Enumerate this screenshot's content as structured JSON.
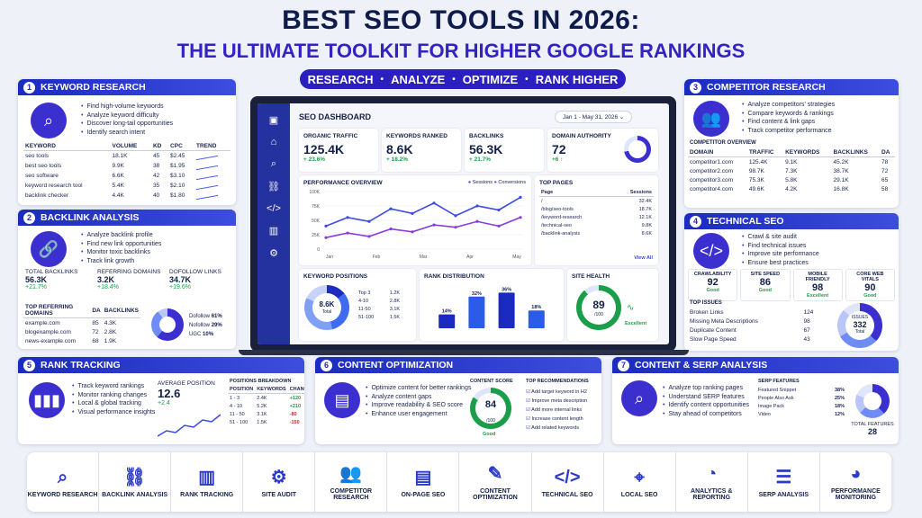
{
  "header": {
    "title": "BEST SEO TOOLS IN 2026:",
    "subtitle": "THE ULTIMATE TOOLKIT FOR HIGHER GOOGLE RANKINGS",
    "steps": [
      "RESEARCH",
      "ANALYZE",
      "OPTIMIZE",
      "RANK HIGHER"
    ],
    "dot": "•"
  },
  "kw": {
    "num": "1",
    "title": "KEYWORD RESEARCH",
    "bullets": [
      "Find high-volume keywords",
      "Analyze keyword difficulty",
      "Discover long-tail opportunities",
      "Identify search intent"
    ],
    "cols": [
      "KEYWORD",
      "VOLUME",
      "KD",
      "CPC",
      "TREND"
    ],
    "rows": [
      [
        "seo tools",
        "18.1K",
        "45",
        "$2.45"
      ],
      [
        "best seo tools",
        "9.9K",
        "38",
        "$1.95"
      ],
      [
        "seo software",
        "6.6K",
        "42",
        "$3.10"
      ],
      [
        "keyword research tool",
        "5.4K",
        "35",
        "$2.10"
      ],
      [
        "backlink checker",
        "4.4K",
        "40",
        "$1.80"
      ]
    ]
  },
  "bl": {
    "num": "2",
    "title": "BACKLINK ANALYSIS",
    "bullets": [
      "Analyze backlink profile",
      "Find new link opportunities",
      "Monitor toxic backlinks",
      "Track link growth"
    ],
    "stats": [
      {
        "label": "TOTAL BACKLINKS",
        "value": "56.3K",
        "change": "+21.7%"
      },
      {
        "label": "REFERRING DOMAINS",
        "value": "3.2K",
        "change": "+18.4%"
      },
      {
        "label": "DOFOLLOW LINKS",
        "value": "34.7K",
        "change": "+19.6%"
      }
    ],
    "cols": [
      "TOP REFERRING DOMAINS",
      "DA",
      "BACKLINKS"
    ],
    "rows": [
      [
        "example.com",
        "85",
        "4.3K"
      ],
      [
        "blogexample.com",
        "72",
        "2.8K"
      ],
      [
        "news-example.com",
        "68",
        "1.9K"
      ]
    ],
    "legend": [
      [
        "Dofollow",
        "61%"
      ],
      [
        "Nofollow",
        "29%"
      ],
      [
        "UGC",
        "10%"
      ]
    ]
  },
  "ct": {
    "num": "3",
    "title": "COMPETITOR RESEARCH",
    "bullets": [
      "Analyze competitors' strategies",
      "Compare keywords & rankings",
      "Find content & link gaps",
      "Track competitor performance"
    ],
    "overview": "COMPETITOR OVERVIEW",
    "cols": [
      "DOMAIN",
      "TRAFFIC",
      "KEYWORDS",
      "BACKLINKS",
      "DA"
    ],
    "rows": [
      [
        "competitor1.com",
        "125.4K",
        "9.1K",
        "45.2K",
        "78"
      ],
      [
        "competitor2.com",
        "98.7K",
        "7.3K",
        "38.7K",
        "72"
      ],
      [
        "competitor3.com",
        "75.3K",
        "5.8K",
        "29.1K",
        "65"
      ],
      [
        "competitor4.com",
        "49.6K",
        "4.2K",
        "16.8K",
        "58"
      ]
    ]
  },
  "ts": {
    "num": "4",
    "title": "TECHNICAL SEO",
    "bullets": [
      "Crawl & site audit",
      "Find technical issues",
      "Improve site performance",
      "Ensure best practices"
    ],
    "scores": [
      [
        "CRAWLABILITY",
        "92",
        "Good"
      ],
      [
        "SITE SPEED",
        "86",
        "Good"
      ],
      [
        "MOBILE FRIENDLY",
        "98",
        "Excellent"
      ],
      [
        "CORE WEB VITALS",
        "90",
        "Good"
      ]
    ],
    "issues_title": "TOP ISSUES",
    "issues": [
      [
        "Broken Links",
        "124"
      ],
      [
        "Missing Meta Descriptions",
        "98"
      ],
      [
        "Duplicate Content",
        "67"
      ],
      [
        "Slow Page Speed",
        "43"
      ]
    ],
    "issues_label": "ISSUES",
    "issues_total": "332",
    "issues_sub": "Total"
  },
  "rt": {
    "num": "5",
    "title": "RANK TRACKING",
    "bullets": [
      "Track keyword rankings",
      "Monitor ranking changes",
      "Local & global tracking",
      "Visual performance insights"
    ],
    "avg_label": "AVERAGE POSITION",
    "avg": "12.6",
    "avg_change": "+2.4",
    "pb_title": "POSITIONS BREAKDOWN",
    "cols": [
      "POSITION",
      "KEYWORDS",
      "CHANGE"
    ],
    "rows": [
      [
        "1 - 3",
        "2.4K",
        "+120"
      ],
      [
        "4 - 10",
        "5.2K",
        "+210"
      ],
      [
        "11 - 50",
        "3.1K",
        "-80"
      ],
      [
        "51 - 100",
        "1.5K",
        "-150"
      ]
    ]
  },
  "co": {
    "num": "6",
    "title": "CONTENT OPTIMIZATION",
    "bullets": [
      "Optimize content for better rankings",
      "Analyze content gaps",
      "Improve readability & SEO score",
      "Enhance user engagement"
    ],
    "score_label": "CONTENT SCORE",
    "score": "84",
    "score_max": "/100",
    "score_status": "Good",
    "rec_title": "TOP RECOMMENDATIONS",
    "recs": [
      "Add target keyword in H2",
      "Improve meta description",
      "Add more internal links",
      "Increase content length",
      "Add related keywords"
    ]
  },
  "cs": {
    "num": "7",
    "title": "CONTENT & SERP ANALYSIS",
    "bullets": [
      "Analyze top ranking pages",
      "Understand SERP features",
      "Identify content opportunities",
      "Stay ahead of competitors"
    ],
    "sf_title": "SERP FEATURES",
    "features": [
      [
        "Featured Snippet",
        "38%"
      ],
      [
        "People Also Ask",
        "25%"
      ],
      [
        "Image Pack",
        "18%"
      ],
      [
        "Video",
        "12%"
      ]
    ],
    "total_label": "TOTAL FEATURES",
    "total": "28"
  },
  "dash": {
    "title": "SEO DASHBOARD",
    "date": "Jan 1 - May 31, 2026",
    "kpis": [
      {
        "label": "ORGANIC TRAFFIC",
        "value": "125.4K",
        "change": "+ 23.6%"
      },
      {
        "label": "KEYWORDS RANKED",
        "value": "8.6K",
        "change": "+ 18.2%"
      },
      {
        "label": "BACKLINKS",
        "value": "56.3K",
        "change": "+ 21.7%"
      },
      {
        "label": "DOMAIN AUTHORITY",
        "value": "72",
        "change": "+6 ↑"
      }
    ],
    "perf_title": "PERFORMANCE OVERVIEW",
    "legend": [
      "Sessions",
      "Conversions"
    ],
    "yticks": [
      "100K",
      "75K",
      "50K",
      "25K",
      "0"
    ],
    "months": [
      "Jan",
      "Feb",
      "Mar",
      "Apr",
      "May"
    ],
    "sessions": [
      40,
      55,
      48,
      70,
      62,
      80,
      58,
      75,
      68,
      90
    ],
    "conversions": [
      20,
      28,
      22,
      35,
      30,
      42,
      38,
      48,
      40,
      55
    ],
    "tp_title": "TOP PAGES",
    "tp_cols": [
      "Page",
      "Sessions"
    ],
    "pages": [
      [
        "/",
        "32.4K"
      ],
      [
        "/blog/seo-tools",
        "18.7K"
      ],
      [
        "/keyword-research",
        "12.1K"
      ],
      [
        "/technical-seo",
        "9.8K"
      ],
      [
        "/backlink-analysis",
        "8.6K"
      ]
    ],
    "view_all": "View All",
    "kp_title": "KEYWORD POSITIONS",
    "kp_value": "8.6K",
    "kp_sub": "Total",
    "kp_rows": [
      [
        "Top 3",
        "1.2K"
      ],
      [
        "4-10",
        "2.8K"
      ],
      [
        "11-50",
        "3.1K"
      ],
      [
        "51-100",
        "1.5K"
      ]
    ],
    "rd_title": "RANK DISTRIBUTION",
    "rd_values": [
      14,
      32,
      36,
      18
    ],
    "rd_labels": [
      "14%",
      "32%",
      "36%",
      "18%"
    ],
    "sh_title": "SITE HEALTH",
    "sh_value": "89",
    "sh_max": "/100",
    "sh_status": "Excellent"
  },
  "tools": [
    "KEYWORD RESEARCH",
    "BACKLINK ANALYSIS",
    "RANK TRACKING",
    "SITE AUDIT",
    "COMPETITOR RESEARCH",
    "ON-PAGE SEO",
    "CONTENT OPTIMIZATION",
    "TECHNICAL SEO",
    "LOCAL SEO",
    "ANALYTICS & REPORTING",
    "SERP ANALYSIS",
    "PERFORMANCE MONITORING"
  ],
  "tool_icons": [
    "search-icon",
    "link-icon",
    "bars-icon",
    "gear-icon",
    "users-icon",
    "document-icon",
    "pencil-icon",
    "code-icon",
    "pin-icon",
    "pie-icon",
    "list-icon",
    "gauge-icon"
  ],
  "colors": {
    "brand": "#2b1fc2",
    "accent": "#3b2fd0",
    "good": "#1a9e4a"
  }
}
